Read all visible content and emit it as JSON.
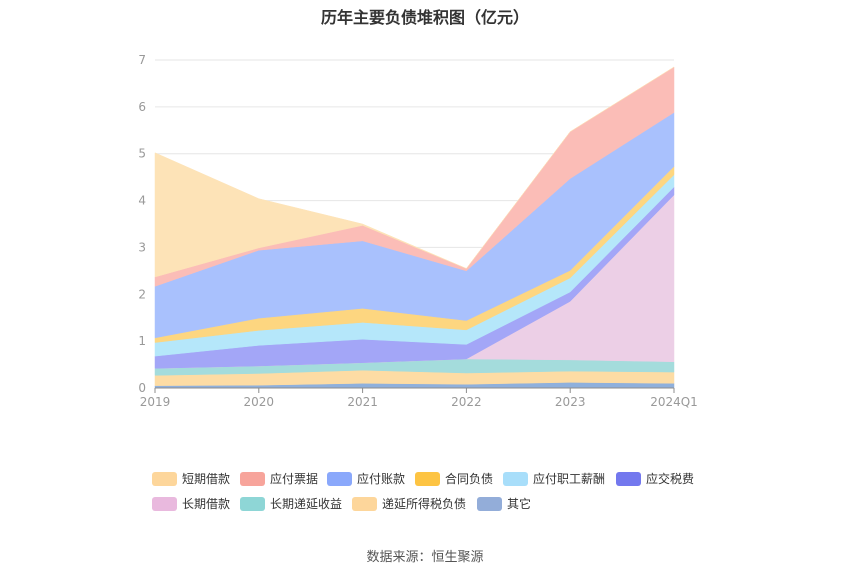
{
  "chart_data": {
    "type": "area",
    "stacked": true,
    "title": "历年主要负债堆积图（亿元）",
    "xlabel": "",
    "ylabel": "",
    "categories": [
      "2019",
      "2020",
      "2021",
      "2022",
      "2023",
      "2024Q1"
    ],
    "ylim": [
      0,
      7
    ],
    "yticks": [
      0,
      1,
      2,
      3,
      4,
      5,
      6,
      7
    ],
    "grid": true,
    "legend_position": "bottom",
    "series": [
      {
        "name": "其它",
        "color": "#8fb0dc",
        "values": [
          0.05,
          0.06,
          0.1,
          0.08,
          0.12,
          0.1
        ]
      },
      {
        "name": "递延所得税负债",
        "color": "#fddca4",
        "values": [
          0.22,
          0.25,
          0.28,
          0.24,
          0.24,
          0.24
        ]
      },
      {
        "name": "长期递延收益",
        "color": "#a4dcdc",
        "values": [
          0.15,
          0.16,
          0.16,
          0.3,
          0.24,
          0.22
        ]
      },
      {
        "name": "长期借款",
        "color": "#eccfe6",
        "values": [
          0,
          0,
          0,
          0,
          1.25,
          3.56
        ]
      },
      {
        "name": "应交税费",
        "color": "#a3a6f7",
        "values": [
          0.26,
          0.44,
          0.5,
          0.31,
          0.2,
          0.17
        ]
      },
      {
        "name": "应付职工薪酬",
        "color": "#b5e7fa",
        "values": [
          0.29,
          0.32,
          0.36,
          0.31,
          0.3,
          0.26
        ]
      },
      {
        "name": "合同负债",
        "color": "#fdd680",
        "values": [
          0.1,
          0.26,
          0.3,
          0.2,
          0.16,
          0.18
        ]
      },
      {
        "name": "应付账款",
        "color": "#a9c1fd",
        "values": [
          1.1,
          1.45,
          1.44,
          1.06,
          1.96,
          1.15
        ]
      },
      {
        "name": "应付票据",
        "color": "#fbbdb7",
        "values": [
          0.2,
          0.05,
          0.33,
          0.05,
          1.0,
          0.97
        ]
      },
      {
        "name": "短期借款",
        "color": "#fde3b7",
        "values": [
          2.65,
          1.05,
          0.03,
          0,
          0,
          0
        ]
      }
    ],
    "legend": [
      {
        "name": "短期借款",
        "color": "#fdd69b"
      },
      {
        "name": "应付票据",
        "color": "#f7a49b"
      },
      {
        "name": "应付账款",
        "color": "#8aa8fb"
      },
      {
        "name": "合同负债",
        "color": "#fdc443"
      },
      {
        "name": "应付职工薪酬",
        "color": "#a8defa"
      },
      {
        "name": "应交税费",
        "color": "#7378ee"
      },
      {
        "name": "长期借款",
        "color": "#e9b9de"
      },
      {
        "name": "长期递延收益",
        "color": "#8ed6d6"
      },
      {
        "name": "递延所得税负债",
        "color": "#fdd69b"
      },
      {
        "name": "其它",
        "color": "#93add9"
      }
    ]
  },
  "source": "数据来源：恒生聚源"
}
